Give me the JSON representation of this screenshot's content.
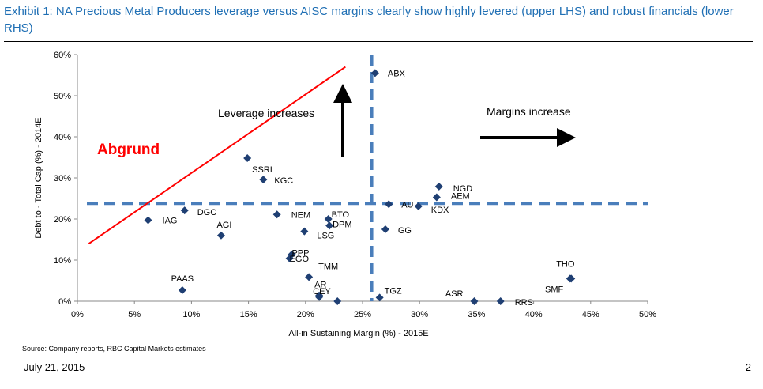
{
  "exhibit_title": "Exhibit 1: NA Precious Metal Producers leverage versus AISC margins clearly show highly levered (upper LHS) and robust financials (lower RHS)",
  "source": "Source: Company reports, RBC Capital Markets estimates",
  "footer": {
    "date": "July 21, 2015",
    "page": "2"
  },
  "colors": {
    "title": "#1f6fb4",
    "marker": "#1f3f73",
    "divider": "#4a7ebb",
    "abgrund": "#ff0000"
  },
  "chart_data": {
    "type": "scatter",
    "xlabel": "All-in Sustaining Margin (%) - 2015E",
    "ylabel": "Debt to - Total Cap (%) - 2014E",
    "xlim": [
      0,
      50
    ],
    "ylim": [
      0,
      60
    ],
    "x_ticks": [
      "0%",
      "5%",
      "10%",
      "15%",
      "20%",
      "25%",
      "30%",
      "35%",
      "40%",
      "45%",
      "50%"
    ],
    "y_ticks": [
      "0%",
      "10%",
      "20%",
      "30%",
      "40%",
      "50%",
      "60%"
    ],
    "grid": false,
    "points": [
      {
        "label": "ABX",
        "x": 26.1,
        "y": 55.5
      },
      {
        "label": "SSRI",
        "x": 14.9,
        "y": 34.8
      },
      {
        "label": "KGC",
        "x": 16.3,
        "y": 29.6
      },
      {
        "label": "NGD",
        "x": 31.7,
        "y": 27.9
      },
      {
        "label": "AEM",
        "x": 31.5,
        "y": 25.3
      },
      {
        "label": "AU",
        "x": 27.3,
        "y": 23.6
      },
      {
        "label": "KDX",
        "x": 29.9,
        "y": 23.1
      },
      {
        "label": "DGC",
        "x": 9.4,
        "y": 22.1
      },
      {
        "label": "IAG",
        "x": 6.2,
        "y": 19.7
      },
      {
        "label": "NEM",
        "x": 17.5,
        "y": 21.1
      },
      {
        "label": "BTO",
        "x": 22.0,
        "y": 20.0
      },
      {
        "label": "DPM",
        "x": 22.1,
        "y": 18.4
      },
      {
        "label": "LSG",
        "x": 19.9,
        "y": 17.0
      },
      {
        "label": "GG",
        "x": 27.0,
        "y": 17.5
      },
      {
        "label": "AGI",
        "x": 12.6,
        "y": 16.0
      },
      {
        "label": "PPP",
        "x": 18.8,
        "y": 11.4
      },
      {
        "label": "EGO",
        "x": 18.6,
        "y": 10.4
      },
      {
        "label": "TMM",
        "x": 20.3,
        "y": 5.9
      },
      {
        "label": "AR",
        "x": 21.2,
        "y": 1.4
      },
      {
        "label": "CEY",
        "x": 21.2,
        "y": 1.0
      },
      {
        "label": "PAAS",
        "x": 9.2,
        "y": 2.7
      },
      {
        "label": "TGZ",
        "x": 26.5,
        "y": 0.9
      },
      {
        "label": "ASR",
        "x": 34.8,
        "y": 0.0
      },
      {
        "label": "RRS",
        "x": 37.1,
        "y": 0.0
      },
      {
        "label": "SMF",
        "x": 43.3,
        "y": 5.5
      },
      {
        "label": "THO",
        "x": 43.2,
        "y": 5.5
      },
      {
        "label": "",
        "x": 22.8,
        "y": 0.0
      }
    ],
    "reference_lines": {
      "x": 25.8,
      "y": 23.8
    },
    "annotations": {
      "leverage": "Leverage increases",
      "margins": "Margins increase",
      "abgrund": "Abgrund"
    },
    "abgrund_line": {
      "from": [
        1.0,
        14.0
      ],
      "to": [
        23.5,
        57.0
      ]
    }
  }
}
